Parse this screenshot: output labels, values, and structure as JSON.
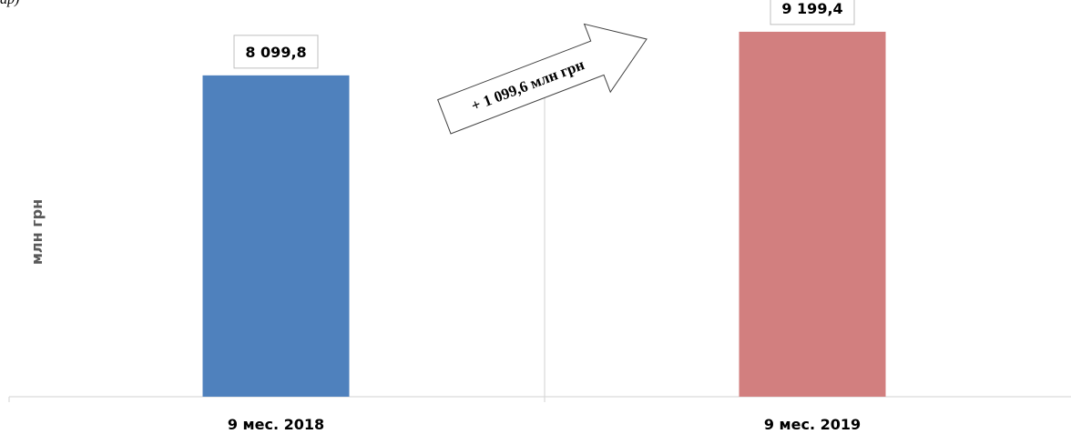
{
  "header": {
    "fragment": "ар)"
  },
  "chart_data": {
    "type": "bar",
    "categories": [
      "9 мес. 2018",
      "9 мес. 2019"
    ],
    "values": [
      8099.8,
      9199.4
    ],
    "value_labels": [
      "8 099,8",
      "9 199,4"
    ],
    "colors": [
      "#4f81bd",
      "#d27f7f"
    ],
    "ylabel": "млн грн",
    "ylim": [
      0,
      10000
    ],
    "grid": false,
    "annotation": {
      "text": "+ 1 099,6 млн грн"
    }
  }
}
